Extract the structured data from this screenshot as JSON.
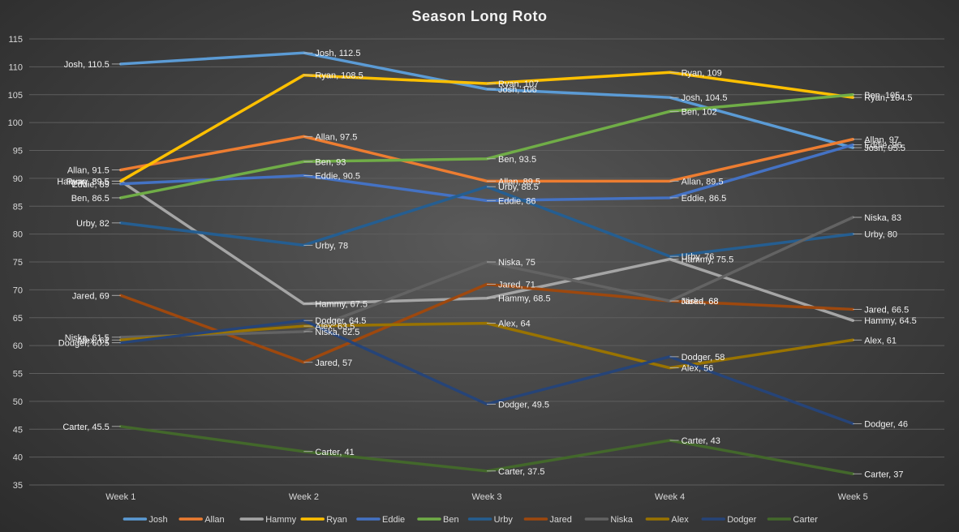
{
  "chart_data": {
    "type": "line",
    "title": "Season Long Roto",
    "xlabel": "",
    "ylabel": "",
    "categories": [
      "Week 1",
      "Week 2",
      "Week 3",
      "Week 4",
      "Week 5"
    ],
    "ylim": [
      35,
      115
    ],
    "yticks": [
      35,
      40,
      45,
      50,
      55,
      60,
      65,
      70,
      75,
      80,
      85,
      90,
      95,
      100,
      105,
      110,
      115
    ],
    "grid": true,
    "legend": "bottom",
    "series": [
      {
        "name": "Josh",
        "color": "#5b9bd5",
        "values": [
          110.5,
          112.5,
          106,
          104.5,
          95.5
        ]
      },
      {
        "name": "Allan",
        "color": "#ed7d31",
        "values": [
          91.5,
          97.5,
          89.5,
          89.5,
          97
        ]
      },
      {
        "name": "Hammy",
        "color": "#a5a5a5",
        "values": [
          89.5,
          67.5,
          68.5,
          75.5,
          64.5
        ]
      },
      {
        "name": "Ryan",
        "color": "#ffc000",
        "values": [
          89.5,
          108.5,
          107,
          109,
          104.5
        ]
      },
      {
        "name": "Eddie",
        "color": "#4472c4",
        "values": [
          89,
          90.5,
          86,
          86.5,
          96
        ]
      },
      {
        "name": "Ben",
        "color": "#70ad47",
        "values": [
          86.5,
          93,
          93.5,
          102,
          105
        ]
      },
      {
        "name": "Urby",
        "color": "#255e91",
        "values": [
          82,
          78,
          88.5,
          76,
          80
        ]
      },
      {
        "name": "Jared",
        "color": "#9e480e",
        "values": [
          69,
          57,
          71,
          68,
          66.5
        ]
      },
      {
        "name": "Niska",
        "color": "#636363",
        "values": [
          61.5,
          62.5,
          75,
          68,
          83
        ]
      },
      {
        "name": "Alex",
        "color": "#997300",
        "values": [
          61,
          63.5,
          64,
          56,
          61
        ]
      },
      {
        "name": "Dodger",
        "color": "#264478",
        "values": [
          60.5,
          64.5,
          49.5,
          58,
          46
        ]
      },
      {
        "name": "Carter",
        "color": "#43682b",
        "values": [
          45.5,
          41,
          37.5,
          43,
          37
        ]
      }
    ]
  }
}
